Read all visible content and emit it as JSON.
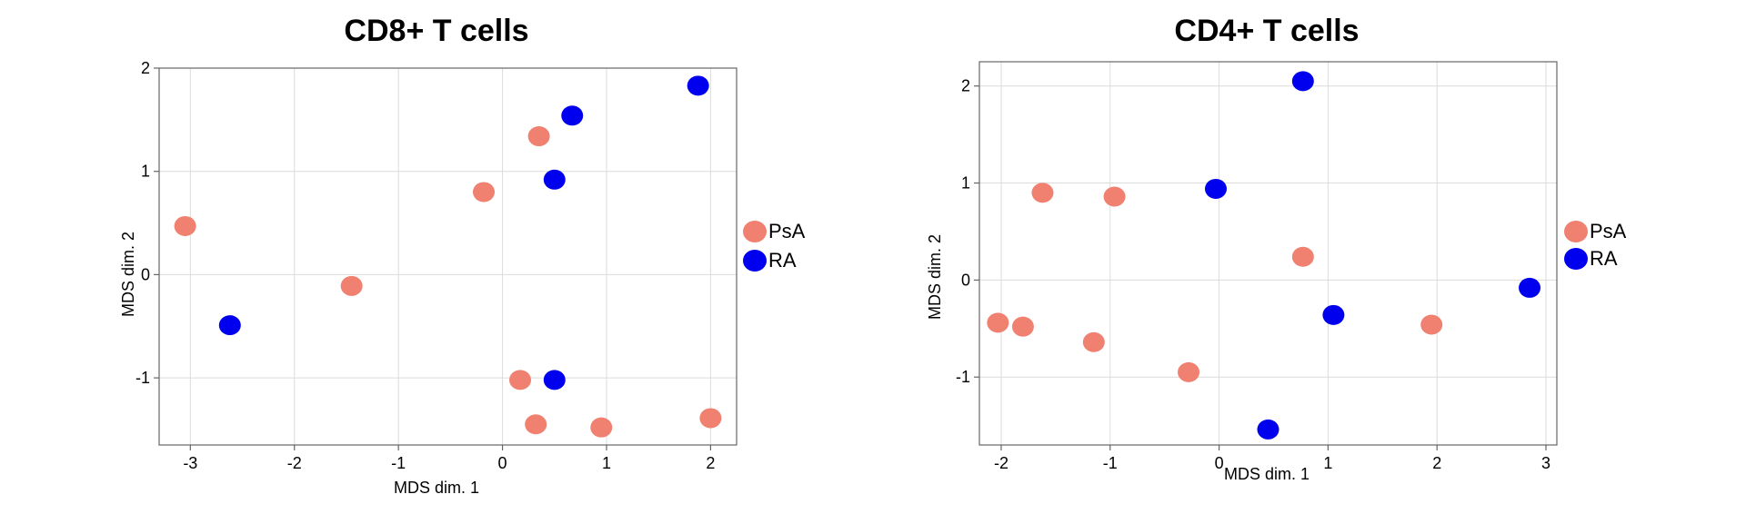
{
  "chart_data": [
    {
      "type": "scatter",
      "title": "CD8+ T cells",
      "xlabel": "MDS dim. 1",
      "ylabel": "MDS dim. 2",
      "xlim": [
        -3.3,
        2.25
      ],
      "ylim": [
        -1.65,
        2.0
      ],
      "xticks": [
        "-3",
        "-2",
        "-1",
        "0",
        "1",
        "2"
      ],
      "yticks": [
        "-1",
        "0",
        "1",
        "2"
      ],
      "grid": true,
      "legend": "right",
      "series": [
        {
          "name": "PsA",
          "color": "#F08070",
          "points": [
            {
              "x": -3.05,
              "y": 0.47
            },
            {
              "x": -1.45,
              "y": -0.11
            },
            {
              "x": -0.18,
              "y": 0.8
            },
            {
              "x": 0.35,
              "y": 1.34
            },
            {
              "x": 0.17,
              "y": -1.02
            },
            {
              "x": 0.32,
              "y": -1.45
            },
            {
              "x": 0.95,
              "y": -1.48
            },
            {
              "x": 2.0,
              "y": -1.39
            }
          ]
        },
        {
          "name": "RA",
          "color": "#0000EE",
          "points": [
            {
              "x": -2.62,
              "y": -0.49
            },
            {
              "x": 0.5,
              "y": 0.92
            },
            {
              "x": 0.67,
              "y": 1.54
            },
            {
              "x": 1.88,
              "y": 1.83
            },
            {
              "x": 0.5,
              "y": -1.02
            }
          ]
        }
      ]
    },
    {
      "type": "scatter",
      "title": "CD4+ T cells",
      "xlabel": "MDS dim. 1",
      "ylabel": "MDS dim. 2",
      "xlim": [
        -2.2,
        3.1
      ],
      "ylim": [
        -1.7,
        2.25
      ],
      "xticks": [
        "-2",
        "-1",
        "0",
        "1",
        "2",
        "3"
      ],
      "yticks": [
        "-1",
        "0",
        "1",
        "2"
      ],
      "grid": true,
      "legend": "right",
      "series": [
        {
          "name": "PsA",
          "color": "#F08070",
          "points": [
            {
              "x": -2.03,
              "y": -0.44
            },
            {
              "x": -1.8,
              "y": -0.48
            },
            {
              "x": -1.62,
              "y": 0.9
            },
            {
              "x": -0.96,
              "y": 0.86
            },
            {
              "x": -1.15,
              "y": -0.64
            },
            {
              "x": -0.28,
              "y": -0.95
            },
            {
              "x": 0.77,
              "y": 0.24
            },
            {
              "x": 1.95,
              "y": -0.46
            }
          ]
        },
        {
          "name": "RA",
          "color": "#0000EE",
          "points": [
            {
              "x": 0.77,
              "y": 2.05
            },
            {
              "x": -0.03,
              "y": 0.94
            },
            {
              "x": 1.05,
              "y": -0.36
            },
            {
              "x": 2.85,
              "y": -0.08
            },
            {
              "x": 0.45,
              "y": -1.54
            }
          ]
        }
      ]
    }
  ]
}
